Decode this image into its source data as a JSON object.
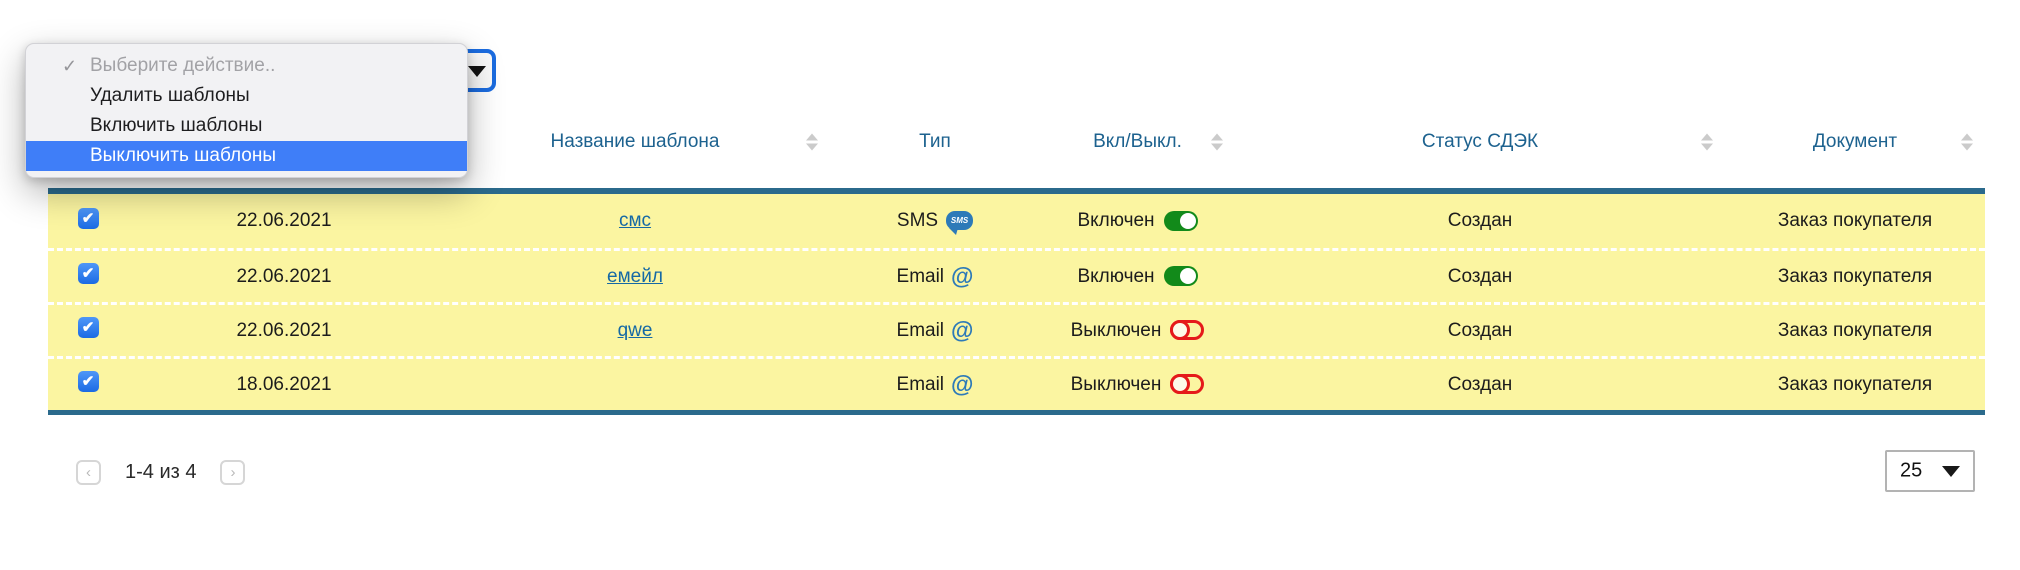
{
  "action_menu": {
    "checkmark": "✓",
    "items": [
      {
        "label": "Выберите действие.."
      },
      {
        "label": "Удалить шаблоны"
      },
      {
        "label": "Включить шаблоны"
      },
      {
        "label": "Выключить шаблоны"
      }
    ]
  },
  "table": {
    "headers": {
      "name": "Название шаблона",
      "type": "Тип",
      "on_off": "Вкл/Выкл.",
      "status": "Статус СДЭК",
      "document": "Документ"
    },
    "sms_badge": "SMS",
    "email_icon": "@",
    "rows": [
      {
        "date": "22.06.2021",
        "name": "смс",
        "type": "SMS",
        "state": "Включен",
        "status": "Создан",
        "document": "Заказ покупателя"
      },
      {
        "date": "22.06.2021",
        "name": "емейл",
        "type": "Email",
        "state": "Включен",
        "status": "Создан",
        "document": "Заказ покупателя"
      },
      {
        "date": "22.06.2021",
        "name": "qwe",
        "type": "Email",
        "state": "Выключен",
        "status": "Создан",
        "document": "Заказ покупателя"
      },
      {
        "date": "18.06.2021",
        "name": "",
        "type": "Email",
        "state": "Выключен",
        "status": "Создан",
        "document": "Заказ покупателя"
      }
    ]
  },
  "pagination": {
    "prev": "‹",
    "range_label": "1-4 из 4",
    "next": "›"
  },
  "page_size": {
    "value": "25"
  },
  "colors": {
    "row_yellow": "#fbf5a1",
    "table_border_teal": "#2b6a8c",
    "header_text": "#1d628f",
    "link": "#1569a5",
    "toggle_on_green": "#128a1a",
    "toggle_off_red": "#e51a1a",
    "menu_highlight_blue": "#3f7ef8",
    "select_border_blue": "#1b6ce0",
    "type_icon_blue": "#2d7ab8"
  }
}
